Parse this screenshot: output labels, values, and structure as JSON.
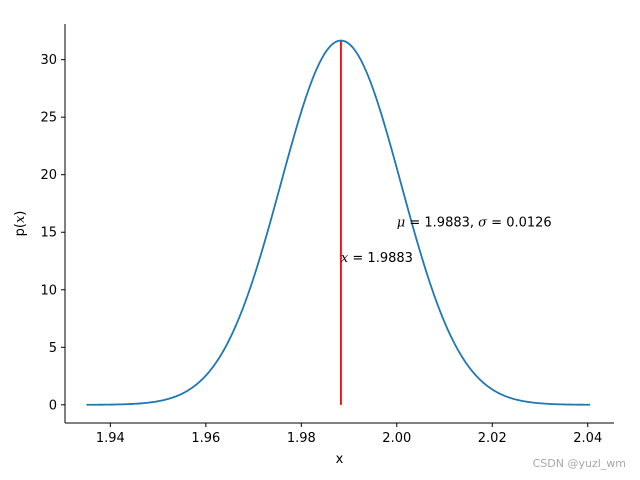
{
  "chart_data": {
    "type": "line",
    "xlabel": "x",
    "ylabel_pre": "p(",
    "ylabel_var": "x",
    "ylabel_post": ")",
    "xlim": [
      1.9305,
      2.0455
    ],
    "ylim": [
      -1.58,
      33.1
    ],
    "x_ticks": [
      1.94,
      1.96,
      1.98,
      2.0,
      2.02,
      2.04
    ],
    "x_tick_labels": [
      "1.94",
      "1.96",
      "1.98",
      "2.00",
      "2.02",
      "2.04"
    ],
    "y_ticks": [
      0,
      5,
      10,
      15,
      20,
      25,
      30
    ],
    "y_tick_labels": [
      "0",
      "5",
      "10",
      "15",
      "20",
      "25",
      "30"
    ],
    "curve": {
      "mu": 1.9883,
      "sigma": 0.0126,
      "x_min": 1.935,
      "x_max": 2.0405,
      "color": "#1f77b4"
    },
    "vline": {
      "x": 1.9883,
      "y_from": 0,
      "y_to": 31.6,
      "color": "#ff0000"
    },
    "annotations": [
      {
        "id": "params",
        "x": 2.0,
        "y": 15.9,
        "sym1": "μ",
        "eq1": " = 1.9883, ",
        "sym2": "σ",
        "eq2": " = 0.0126"
      },
      {
        "id": "xline",
        "x": 1.9883,
        "y": 12.8,
        "sym1": "x",
        "eq1": " = 1.9883"
      }
    ],
    "grid": false,
    "spines": [
      "left",
      "bottom"
    ]
  },
  "watermark": "CSDN @yuzl_wm"
}
